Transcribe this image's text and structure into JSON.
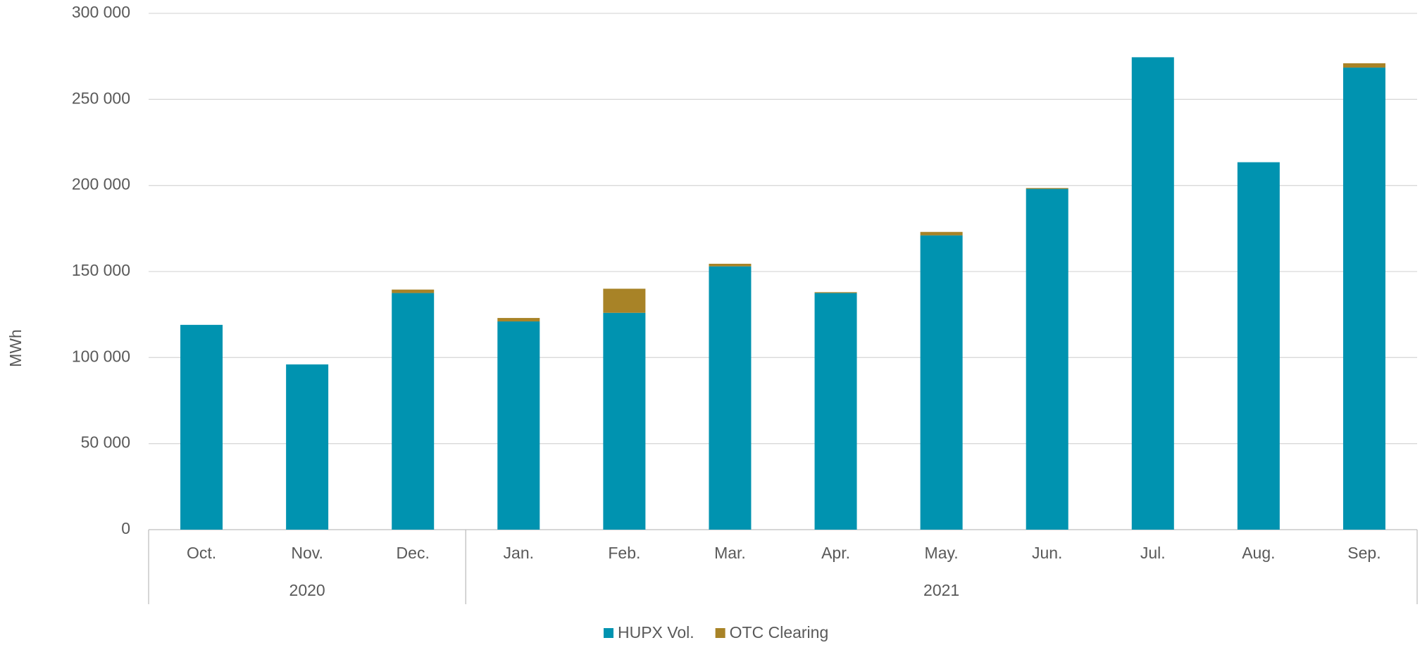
{
  "chart_data": {
    "type": "stacked_bar",
    "y_label": "MWh",
    "categories": [
      "Oct.",
      "Nov.",
      "Dec.",
      "Jan.",
      "Feb.",
      "Mar.",
      "Apr.",
      "May.",
      "Jun.",
      "Jul.",
      "Aug.",
      "Sep."
    ],
    "category_groups": [
      "2020",
      null,
      null,
      "2021",
      null,
      null,
      null,
      null,
      null,
      null,
      null,
      null
    ],
    "series": [
      {
        "name": "HUPX Vol.",
        "color": "#0093b0",
        "values": [
          119000,
          96000,
          137500,
          121000,
          126000,
          153000,
          137500,
          171000,
          198000,
          274500,
          213500,
          268500
        ]
      },
      {
        "name": "OTC Clearing",
        "color": "#a88327",
        "values": [
          0,
          0,
          2000,
          2000,
          14000,
          1500,
          500,
          2000,
          500,
          0,
          0,
          2500
        ]
      }
    ],
    "ylim": [
      0,
      300000
    ],
    "yticks": [
      0,
      {
        "value": 50000,
        "label": "50 000"
      },
      {
        "value": 100000,
        "label": "100 000"
      },
      {
        "value": 150000,
        "label": "150 000"
      },
      {
        "value": 200000,
        "label": "200 000"
      },
      {
        "value": 250000,
        "label": "250 000"
      },
      {
        "value": 300000,
        "label": "300 000"
      }
    ],
    "grid": true,
    "legend": "bottom"
  }
}
